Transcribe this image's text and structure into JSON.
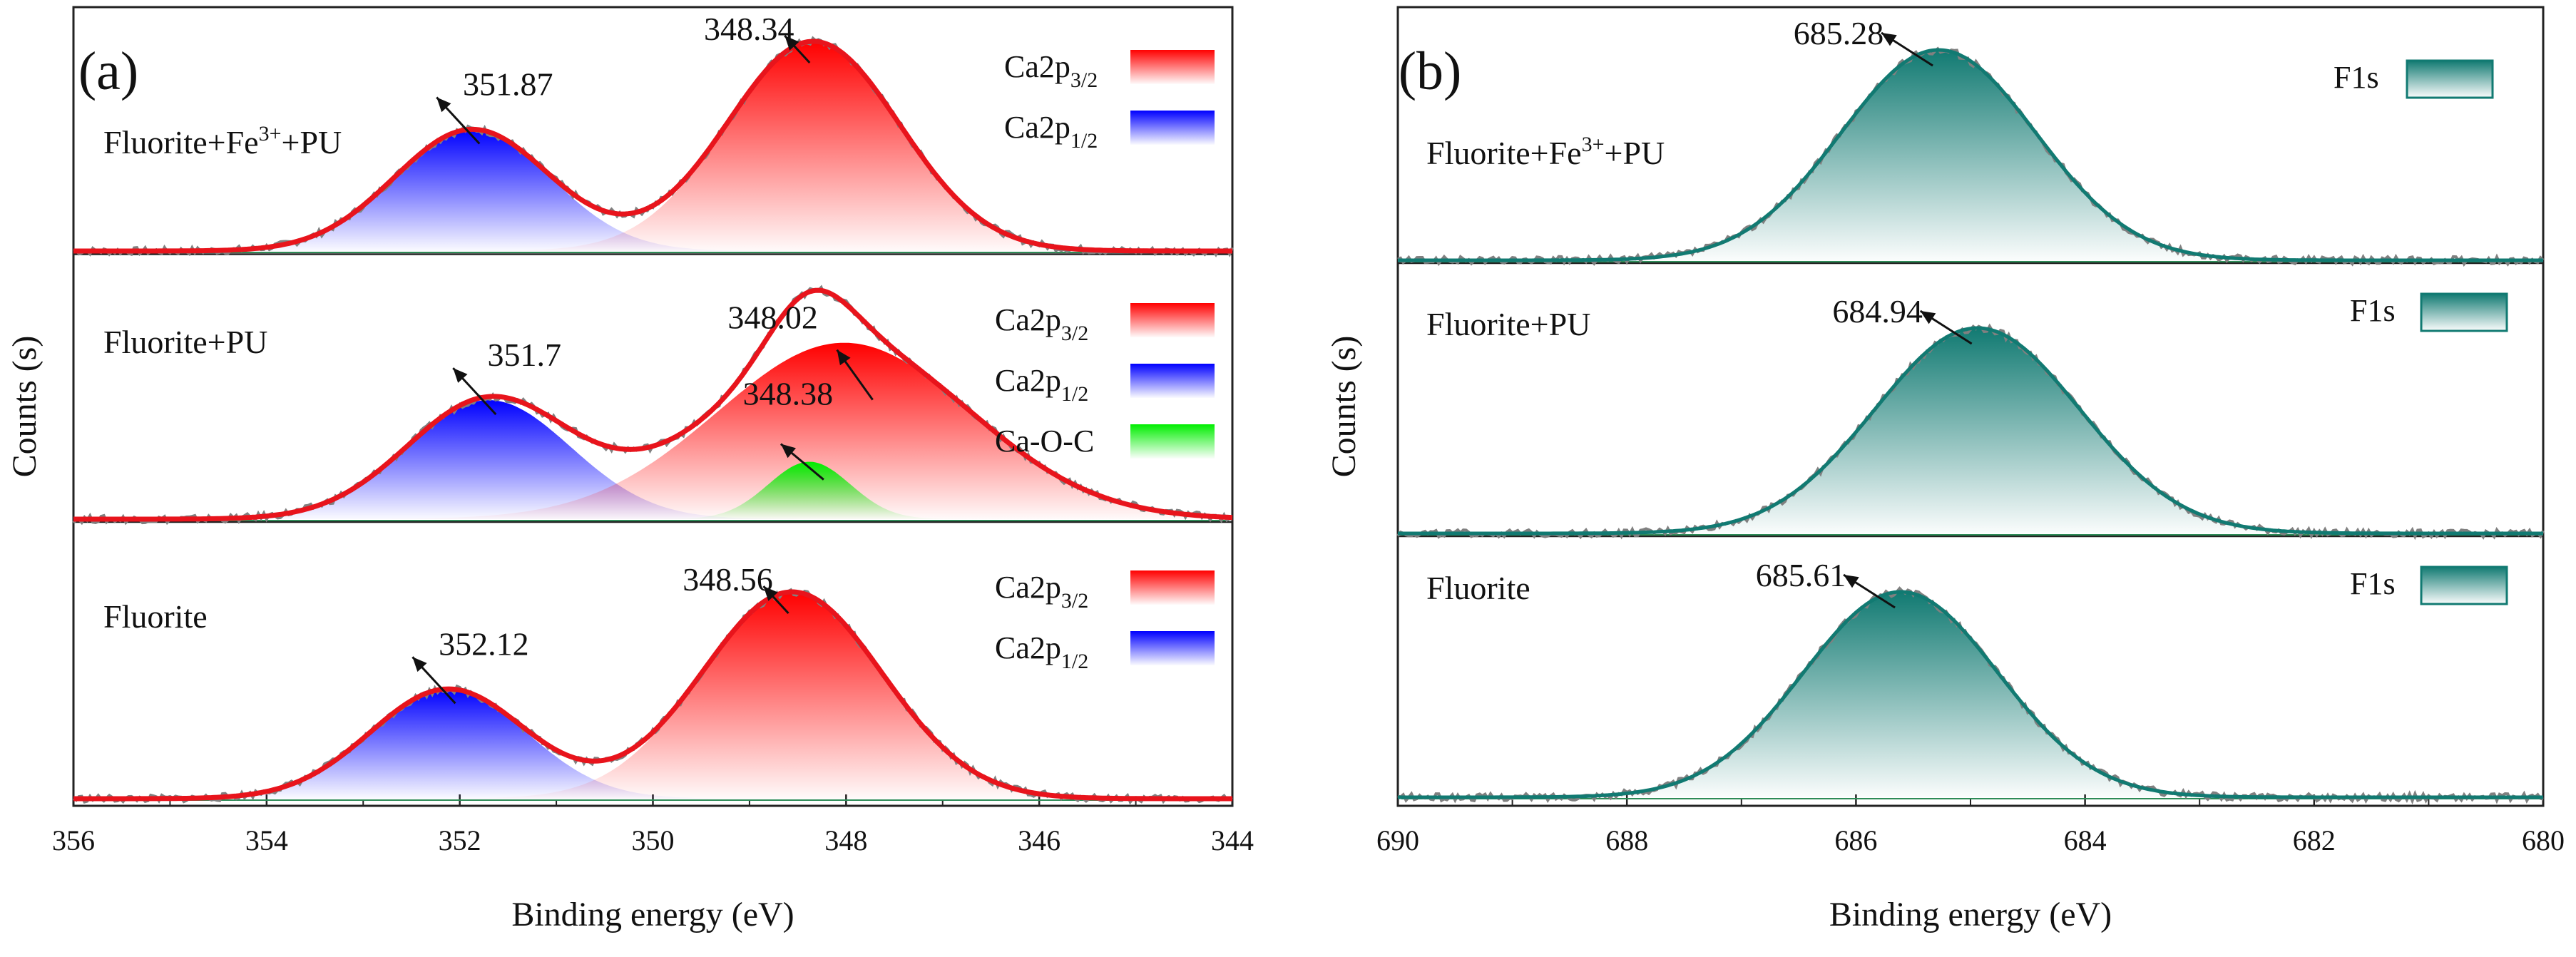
{
  "chart_data": [
    {
      "panel": "(a)",
      "type": "area",
      "xlabel": "Binding energy (eV)",
      "ylabel": "Counts (s)",
      "xlim": [
        356,
        344
      ],
      "xticks": [
        "356",
        "354",
        "352",
        "350",
        "348",
        "346",
        "344"
      ],
      "x_reversed": true,
      "subplots": [
        {
          "sample": "Fluorite+Fe3+ +PU",
          "sample_parts": [
            "Fluorite+Fe",
            "3+",
            "+PU"
          ],
          "peaks": [
            {
              "component": "Ca2p1/2",
              "center": 351.87,
              "fwhm": 1.9,
              "height": 0.58,
              "color": "#0000ff",
              "label": "351.87"
            },
            {
              "component": "Ca2p3/2",
              "center": 348.34,
              "fwhm": 2.1,
              "height": 1.0,
              "color": "#ff0000",
              "label": "348.34"
            }
          ],
          "legend": [
            {
              "main": "Ca2p",
              "sub": "3/2",
              "color": "#ff0000"
            },
            {
              "main": "Ca2p",
              "sub": "1/2",
              "color": "#0000ff"
            }
          ]
        },
        {
          "sample": "Fluorite+PU",
          "sample_parts": [
            "Fluorite+PU"
          ],
          "peaks": [
            {
              "component": "Ca2p1/2",
              "center": 351.7,
              "fwhm": 2.0,
              "height": 0.56,
              "color": "#0000ff",
              "label": "351.7"
            },
            {
              "component": "Ca2p3/2",
              "center": 348.02,
              "fwhm": 3.1,
              "height": 0.83,
              "color": "#ff0000",
              "label": "348.02"
            },
            {
              "component": "Ca-O-C",
              "center": 348.38,
              "fwhm": 1.0,
              "height": 0.27,
              "color": "#00ee00",
              "label": "348.38"
            }
          ],
          "legend": [
            {
              "main": "Ca2p",
              "sub": "3/2",
              "color": "#ff0000"
            },
            {
              "main": "Ca2p",
              "sub": "1/2",
              "color": "#0000ff"
            },
            {
              "main": "Ca-O-C",
              "sub": "",
              "color": "#00ee00"
            }
          ]
        },
        {
          "sample": "Fluorite",
          "sample_parts": [
            "Fluorite"
          ],
          "peaks": [
            {
              "component": "Ca2p1/2",
              "center": 352.12,
              "fwhm": 1.9,
              "height": 0.53,
              "color": "#0000ff",
              "label": "352.12"
            },
            {
              "component": "Ca2p3/2",
              "center": 348.56,
              "fwhm": 2.2,
              "height": 1.0,
              "color": "#ff0000",
              "label": "348.56"
            }
          ],
          "legend": [
            {
              "main": "Ca2p",
              "sub": "3/2",
              "color": "#ff0000"
            },
            {
              "main": "Ca2p",
              "sub": "1/2",
              "color": "#0000ff"
            }
          ]
        }
      ]
    },
    {
      "panel": "(b)",
      "type": "area",
      "xlabel": "Binding energy (eV)",
      "ylabel": "Counts (s)",
      "xlim": [
        690,
        680
      ],
      "xticks": [
        "690",
        "688",
        "686",
        "684",
        "682",
        "680"
      ],
      "x_reversed": true,
      "subplots": [
        {
          "sample": "Fluorite+Fe3+ +PU",
          "sample_parts": [
            "Fluorite+Fe",
            "3+",
            "+PU"
          ],
          "peaks": [
            {
              "component": "F1s",
              "center": 685.28,
              "fwhm": 2.0,
              "height": 1.0,
              "color": "#117a72",
              "label": "685.28"
            }
          ],
          "legend": [
            {
              "main": "F1s",
              "sub": "",
              "color": "#117a72"
            }
          ]
        },
        {
          "sample": "Fluorite+PU",
          "sample_parts": [
            "Fluorite+PU"
          ],
          "peaks": [
            {
              "component": "F1s",
              "center": 684.94,
              "fwhm": 2.1,
              "height": 1.0,
              "color": "#117a72",
              "label": "684.94"
            }
          ],
          "legend": [
            {
              "main": "F1s",
              "sub": "",
              "color": "#117a72"
            }
          ]
        },
        {
          "sample": "Fluorite",
          "sample_parts": [
            "Fluorite"
          ],
          "peaks": [
            {
              "component": "F1s",
              "center": 685.61,
              "fwhm": 2.0,
              "height": 1.0,
              "color": "#117a72",
              "label": "685.61"
            }
          ],
          "legend": [
            {
              "main": "F1s",
              "sub": "",
              "color": "#117a72"
            }
          ]
        }
      ]
    }
  ],
  "colors": {
    "envelope_a": "#e8141c",
    "envelope_b": "#117a72",
    "raw": "#808080",
    "background_line": "#2e8b57"
  }
}
